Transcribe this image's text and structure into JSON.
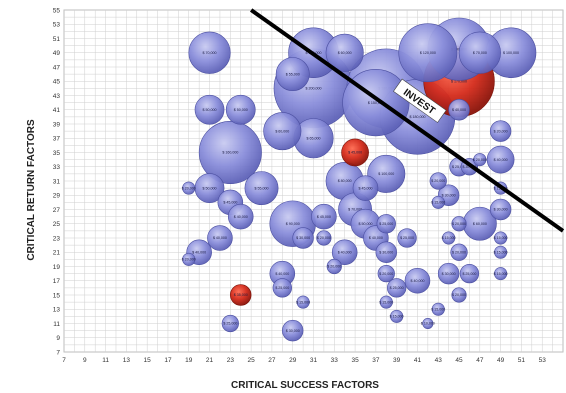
{
  "chart_data": {
    "type": "scatter",
    "subtype": "bubble",
    "xlabel": "CRITICAL SUCCESS FACTORS",
    "ylabel": "CRITICAL RETURN FACTORS",
    "xlim": [
      7,
      55
    ],
    "ylim": [
      7,
      55
    ],
    "x_ticks": [
      7,
      9,
      11,
      13,
      15,
      17,
      19,
      21,
      23,
      25,
      27,
      29,
      31,
      33,
      35,
      37,
      39,
      41,
      43,
      45,
      47,
      49,
      51,
      53
    ],
    "y_ticks": [
      7,
      9,
      11,
      13,
      15,
      17,
      19,
      21,
      23,
      25,
      27,
      29,
      31,
      33,
      35,
      37,
      39,
      41,
      43,
      45,
      47,
      49,
      51,
      53,
      55
    ],
    "grid": true,
    "colors": {
      "default": "#7a7fd4",
      "highlight": "#d42a1a",
      "grid": "#cfcfcf",
      "line": "#000000"
    },
    "annotation": {
      "text": "INVEST"
    },
    "divider_line": {
      "from": [
        25,
        55
      ],
      "to": [
        55,
        24
      ]
    },
    "bubbles": [
      {
        "x": 21,
        "y": 49,
        "r": 2.0,
        "label": "$ 70,000",
        "highlight": false
      },
      {
        "x": 31,
        "y": 49,
        "r": 2.4,
        "label": "$ 100,000",
        "highlight": false
      },
      {
        "x": 34,
        "y": 49,
        "r": 1.8,
        "label": "$ 60,000",
        "highlight": false
      },
      {
        "x": 29,
        "y": 46,
        "r": 1.6,
        "label": "$ 55,000",
        "highlight": false
      },
      {
        "x": 31,
        "y": 44,
        "r": 3.8,
        "label": "$ 200,000",
        "highlight": false
      },
      {
        "x": 38,
        "y": 44,
        "r": 3.8,
        "label": "$ 180,000",
        "highlight": false
      },
      {
        "x": 42,
        "y": 49,
        "r": 2.8,
        "label": "$ 120,000",
        "highlight": false
      },
      {
        "x": 45,
        "y": 49.5,
        "r": 3.0,
        "label": "$ 140,000",
        "highlight": false
      },
      {
        "x": 47,
        "y": 49,
        "r": 2.0,
        "label": "$ 70,000",
        "highlight": false
      },
      {
        "x": 50,
        "y": 49,
        "r": 2.4,
        "label": "$ 100,000",
        "highlight": false
      },
      {
        "x": 45,
        "y": 45,
        "r": 3.4,
        "label": "$ 170,000",
        "highlight": true
      },
      {
        "x": 41,
        "y": 40,
        "r": 3.6,
        "label": "$ 180,000",
        "highlight": false
      },
      {
        "x": 45,
        "y": 41,
        "r": 1.0,
        "label": "$ 40,000",
        "highlight": false
      },
      {
        "x": 37,
        "y": 42,
        "r": 3.2,
        "label": "$ 150,000",
        "highlight": false
      },
      {
        "x": 21,
        "y": 41,
        "r": 1.4,
        "label": "$ 50,000",
        "highlight": false
      },
      {
        "x": 24,
        "y": 41,
        "r": 1.4,
        "label": "$ 50,000",
        "highlight": false
      },
      {
        "x": 28,
        "y": 38,
        "r": 1.8,
        "label": "$ 60,000",
        "highlight": false
      },
      {
        "x": 31,
        "y": 37,
        "r": 1.9,
        "label": "$ 65,000",
        "highlight": false
      },
      {
        "x": 23,
        "y": 35,
        "r": 3.0,
        "label": "$ 160,000",
        "highlight": false
      },
      {
        "x": 35,
        "y": 35,
        "r": 1.3,
        "label": "$ 45,000",
        "highlight": true
      },
      {
        "x": 49,
        "y": 38,
        "r": 1.0,
        "label": "$ 20,000",
        "highlight": false
      },
      {
        "x": 49,
        "y": 34,
        "r": 1.3,
        "label": "$ 40,000",
        "highlight": false
      },
      {
        "x": 46,
        "y": 33,
        "r": 0.8,
        "label": "$ 30,000",
        "highlight": false
      },
      {
        "x": 47,
        "y": 34,
        "r": 0.6,
        "label": "$ 20,000",
        "highlight": false
      },
      {
        "x": 45,
        "y": 33,
        "r": 0.9,
        "label": "$ 25,000",
        "highlight": false
      },
      {
        "x": 38,
        "y": 32,
        "r": 1.8,
        "label": "$ 100,000",
        "highlight": false
      },
      {
        "x": 34,
        "y": 31,
        "r": 1.8,
        "label": "$ 80,000",
        "highlight": false
      },
      {
        "x": 36,
        "y": 30,
        "r": 1.2,
        "label": "$ 45,000",
        "highlight": false
      },
      {
        "x": 19,
        "y": 30,
        "r": 0.6,
        "label": "$ 20,000",
        "highlight": false
      },
      {
        "x": 21,
        "y": 30,
        "r": 1.4,
        "label": "$ 50,000",
        "highlight": false
      },
      {
        "x": 23,
        "y": 28,
        "r": 1.2,
        "label": "$ 45,000",
        "highlight": false
      },
      {
        "x": 26,
        "y": 30,
        "r": 1.6,
        "label": "$ 55,000",
        "highlight": false
      },
      {
        "x": 24,
        "y": 26,
        "r": 1.2,
        "label": "$ 40,000",
        "highlight": false
      },
      {
        "x": 29,
        "y": 25,
        "r": 2.2,
        "label": "$ 90,000",
        "highlight": false
      },
      {
        "x": 32,
        "y": 26,
        "r": 1.2,
        "label": "$ 45,000",
        "highlight": false
      },
      {
        "x": 35,
        "y": 27,
        "r": 1.6,
        "label": "$ 70,000",
        "highlight": false
      },
      {
        "x": 36,
        "y": 25,
        "r": 1.4,
        "label": "$ 50,000",
        "highlight": false
      },
      {
        "x": 38,
        "y": 25,
        "r": 0.9,
        "label": "$ 25,000",
        "highlight": false
      },
      {
        "x": 30,
        "y": 23,
        "r": 1.0,
        "label": "$ 30,000",
        "highlight": false
      },
      {
        "x": 32,
        "y": 23,
        "r": 0.7,
        "label": "$ 20,000",
        "highlight": false
      },
      {
        "x": 34,
        "y": 21,
        "r": 1.2,
        "label": "$ 40,000",
        "highlight": false
      },
      {
        "x": 33,
        "y": 19,
        "r": 0.7,
        "label": "$ 20,000",
        "highlight": false
      },
      {
        "x": 37,
        "y": 23,
        "r": 1.2,
        "label": "$ 40,000",
        "highlight": false
      },
      {
        "x": 38,
        "y": 21,
        "r": 1.0,
        "label": "$ 30,000",
        "highlight": false
      },
      {
        "x": 40,
        "y": 23,
        "r": 0.9,
        "label": "$ 25,000",
        "highlight": false
      },
      {
        "x": 22,
        "y": 23,
        "r": 1.2,
        "label": "$ 40,000",
        "highlight": false
      },
      {
        "x": 20,
        "y": 21,
        "r": 1.2,
        "label": "$ 40,000",
        "highlight": false
      },
      {
        "x": 19,
        "y": 20,
        "r": 0.6,
        "label": "$ 20,000",
        "highlight": false
      },
      {
        "x": 28,
        "y": 18,
        "r": 1.2,
        "label": "$ 40,000",
        "highlight": false
      },
      {
        "x": 28,
        "y": 16,
        "r": 0.9,
        "label": "$ 25,000",
        "highlight": false
      },
      {
        "x": 24,
        "y": 15,
        "r": 1.0,
        "label": "$ 35,000",
        "highlight": true
      },
      {
        "x": 30,
        "y": 14,
        "r": 0.6,
        "label": "$ 15,000",
        "highlight": false
      },
      {
        "x": 23,
        "y": 11,
        "r": 0.8,
        "label": "$ 25,000",
        "highlight": false
      },
      {
        "x": 29,
        "y": 10,
        "r": 1.0,
        "label": "$ 30,000",
        "highlight": false
      },
      {
        "x": 38,
        "y": 18,
        "r": 0.8,
        "label": "$ 20,000",
        "highlight": false
      },
      {
        "x": 39,
        "y": 16,
        "r": 0.9,
        "label": "$ 25,000",
        "highlight": false
      },
      {
        "x": 41,
        "y": 17,
        "r": 1.2,
        "label": "$ 40,000",
        "highlight": false
      },
      {
        "x": 38,
        "y": 14,
        "r": 0.6,
        "label": "$ 15,000",
        "highlight": false
      },
      {
        "x": 39,
        "y": 12,
        "r": 0.6,
        "label": "$ 15,000",
        "highlight": false
      },
      {
        "x": 42,
        "y": 11,
        "r": 0.5,
        "label": "$ 10,000",
        "highlight": false
      },
      {
        "x": 43,
        "y": 13,
        "r": 0.6,
        "label": "$ 15,000",
        "highlight": false
      },
      {
        "x": 44,
        "y": 18,
        "r": 1.0,
        "label": "$ 30,000",
        "highlight": false
      },
      {
        "x": 46,
        "y": 18,
        "r": 0.9,
        "label": "$ 25,000",
        "highlight": false
      },
      {
        "x": 45,
        "y": 15,
        "r": 0.7,
        "label": "$ 20,000",
        "highlight": false
      },
      {
        "x": 45,
        "y": 21,
        "r": 0.8,
        "label": "$ 20,000",
        "highlight": false
      },
      {
        "x": 47,
        "y": 25,
        "r": 1.6,
        "label": "$ 60,000",
        "highlight": false
      },
      {
        "x": 45,
        "y": 25,
        "r": 0.7,
        "label": "$ 20,000",
        "highlight": false
      },
      {
        "x": 44,
        "y": 23,
        "r": 0.6,
        "label": "$ 15,000",
        "highlight": false
      },
      {
        "x": 43,
        "y": 31,
        "r": 0.8,
        "label": "$ 20,000",
        "highlight": false
      },
      {
        "x": 44,
        "y": 29,
        "r": 1.0,
        "label": "$ 30,000",
        "highlight": false
      },
      {
        "x": 43,
        "y": 28,
        "r": 0.6,
        "label": "$ 15,000",
        "highlight": false
      },
      {
        "x": 49,
        "y": 30,
        "r": 0.6,
        "label": "$ 15,000",
        "highlight": false
      },
      {
        "x": 49,
        "y": 27,
        "r": 1.0,
        "label": "$ 30,000",
        "highlight": false
      },
      {
        "x": 49,
        "y": 23,
        "r": 0.6,
        "label": "$ 15,000",
        "highlight": false
      },
      {
        "x": 49,
        "y": 21,
        "r": 0.6,
        "label": "$ 15,000",
        "highlight": false
      },
      {
        "x": 49,
        "y": 18,
        "r": 0.6,
        "label": "$ 15,000",
        "highlight": false
      }
    ]
  }
}
